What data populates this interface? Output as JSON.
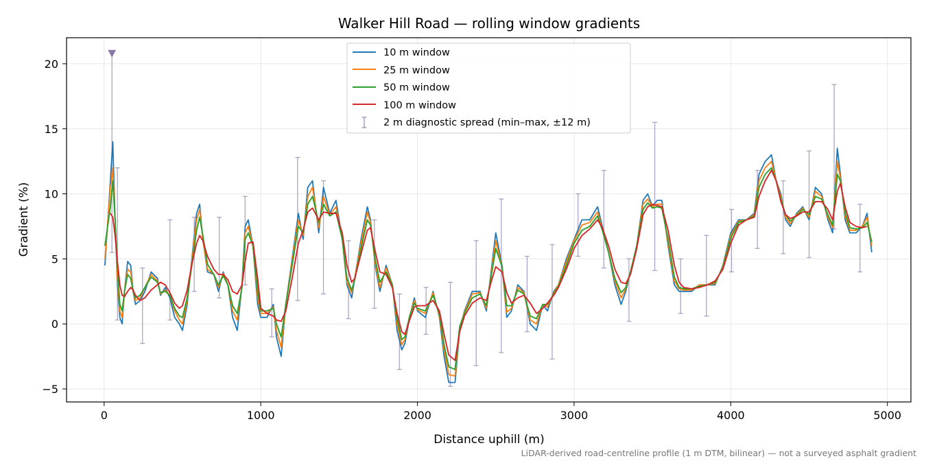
{
  "chart_data": {
    "type": "line",
    "title": "Walker Hill Road — rolling window gradients",
    "xlabel": "Distance uphill (m)",
    "ylabel": "Gradient (%)",
    "footnote": "LiDAR-derived road-centreline profile (1 m DTM, bilinear) — not a surveyed asphalt gradient",
    "xlim": [
      -240,
      5150
    ],
    "ylim": [
      -6,
      22
    ],
    "xticks": [
      0,
      1000,
      2000,
      3000,
      4000,
      5000
    ],
    "yticks": [
      -5,
      0,
      5,
      10,
      15,
      20
    ],
    "yticks_labels": [
      "−5",
      "0",
      "5",
      "10",
      "15",
      "20"
    ],
    "grid": true,
    "legend_position": "top-center",
    "colors": {
      "w10": "#1f77b4",
      "w25": "#ff7f0e",
      "w50": "#2ca02c",
      "w100": "#d62728",
      "spread": "#9a8fb5",
      "marker": "#8a79a8"
    },
    "x": [
      5,
      40,
      55,
      70,
      85,
      100,
      115,
      130,
      150,
      170,
      185,
      200,
      230,
      260,
      300,
      340,
      360,
      390,
      420,
      450,
      480,
      500,
      530,
      560,
      590,
      610,
      630,
      660,
      700,
      730,
      760,
      790,
      820,
      850,
      880,
      900,
      920,
      950,
      980,
      1000,
      1040,
      1080,
      1100,
      1130,
      1160,
      1200,
      1240,
      1270,
      1300,
      1330,
      1370,
      1400,
      1440,
      1480,
      1520,
      1550,
      1580,
      1600,
      1640,
      1680,
      1700,
      1730,
      1760,
      1800,
      1840,
      1870,
      1900,
      1920,
      1950,
      1980,
      2000,
      2050,
      2100,
      2140,
      2170,
      2200,
      2240,
      2270,
      2300,
      2350,
      2400,
      2440,
      2470,
      2500,
      2540,
      2570,
      2600,
      2640,
      2680,
      2720,
      2760,
      2800,
      2830,
      2870,
      2900,
      2950,
      3000,
      3050,
      3100,
      3150,
      3180,
      3220,
      3260,
      3300,
      3330,
      3360,
      3400,
      3440,
      3470,
      3500,
      3530,
      3560,
      3600,
      3640,
      3670,
      3700,
      3750,
      3800,
      3850,
      3900,
      3950,
      4000,
      4050,
      4100,
      4150,
      4180,
      4220,
      4260,
      4290,
      4320,
      4350,
      4380,
      4420,
      4460,
      4500,
      4540,
      4580,
      4620,
      4650,
      4680,
      4700,
      4730,
      4760,
      4800,
      4840,
      4870,
      4900
    ],
    "series": [
      {
        "name": "10 m window",
        "values": [
          4.5,
          11.0,
          14.0,
          8.0,
          3.0,
          0.5,
          0.0,
          2.5,
          4.8,
          4.5,
          2.5,
          1.5,
          1.8,
          2.5,
          4.0,
          3.5,
          2.2,
          2.8,
          2.0,
          0.5,
          0.0,
          -0.5,
          1.5,
          5.0,
          8.5,
          9.2,
          6.5,
          4.0,
          3.8,
          2.5,
          4.0,
          3.0,
          0.5,
          -0.5,
          3.0,
          7.5,
          8.0,
          6.0,
          1.5,
          0.5,
          0.5,
          1.5,
          -1.0,
          -2.5,
          1.5,
          5.0,
          8.5,
          6.5,
          10.5,
          11.0,
          7.0,
          10.5,
          8.5,
          9.5,
          6.5,
          3.0,
          2.0,
          3.5,
          6.5,
          9.0,
          8.0,
          4.5,
          2.5,
          4.5,
          3.0,
          -0.5,
          -2.0,
          -1.5,
          0.5,
          2.0,
          1.0,
          0.5,
          2.5,
          0.5,
          -2.5,
          -4.5,
          -4.5,
          -0.5,
          1.0,
          2.5,
          2.5,
          1.0,
          4.0,
          7.0,
          4.5,
          0.5,
          1.0,
          3.0,
          2.5,
          0.0,
          -0.5,
          1.5,
          1.0,
          2.5,
          3.0,
          5.0,
          6.5,
          8.0,
          8.0,
          9.0,
          7.5,
          5.5,
          3.0,
          1.5,
          2.5,
          4.0,
          6.0,
          9.5,
          10.0,
          9.0,
          9.5,
          9.5,
          6.0,
          3.0,
          2.5,
          2.5,
          2.5,
          3.0,
          3.0,
          3.0,
          4.5,
          7.0,
          8.0,
          8.0,
          8.5,
          11.5,
          12.5,
          13.0,
          11.0,
          10.0,
          8.0,
          7.5,
          8.5,
          9.0,
          8.0,
          10.5,
          10.0,
          8.0,
          7.0,
          13.5,
          11.5,
          8.0,
          7.0,
          7.0,
          7.5,
          8.5,
          5.5
        ]
      },
      {
        "name": "25 m window",
        "values": [
          5.0,
          10.5,
          12.0,
          8.0,
          3.5,
          1.0,
          0.5,
          2.5,
          4.2,
          4.0,
          2.5,
          1.8,
          2.0,
          2.8,
          3.8,
          3.3,
          2.3,
          2.6,
          2.2,
          1.0,
          0.3,
          0.0,
          1.8,
          4.8,
          8.0,
          8.8,
          6.5,
          4.2,
          3.8,
          2.8,
          3.9,
          3.0,
          1.0,
          0.3,
          3.0,
          7.0,
          7.5,
          6.0,
          2.0,
          0.8,
          0.8,
          1.3,
          -0.5,
          -1.8,
          1.5,
          4.8,
          8.0,
          6.8,
          9.8,
          10.5,
          7.4,
          9.8,
          8.4,
          9.0,
          6.5,
          3.2,
          2.4,
          3.5,
          6.2,
          8.6,
          7.8,
          4.7,
          2.8,
          4.3,
          3.0,
          0.0,
          -1.6,
          -1.2,
          0.6,
          1.8,
          1.1,
          0.8,
          2.4,
          0.6,
          -2.0,
          -3.9,
          -4.0,
          -0.3,
          0.9,
          2.3,
          2.4,
          1.2,
          3.8,
          6.4,
          4.4,
          0.9,
          1.2,
          2.8,
          2.4,
          0.3,
          0.0,
          1.5,
          1.3,
          2.4,
          3.0,
          4.8,
          6.4,
          7.6,
          7.8,
          8.6,
          7.3,
          5.5,
          3.3,
          2.0,
          2.7,
          4.0,
          6.0,
          9.2,
          9.6,
          9.0,
          9.2,
          9.2,
          6.2,
          3.3,
          2.7,
          2.6,
          2.6,
          3.0,
          3.0,
          3.1,
          4.4,
          6.8,
          7.9,
          8.0,
          8.4,
          11.0,
          12.0,
          12.5,
          11.0,
          9.8,
          8.2,
          7.7,
          8.4,
          8.9,
          8.2,
          10.2,
          9.8,
          8.2,
          7.4,
          12.5,
          11.2,
          8.3,
          7.2,
          7.2,
          7.5,
          8.2,
          6.0
        ]
      },
      {
        "name": "50 m window",
        "values": [
          6.0,
          9.0,
          11.0,
          8.0,
          4.5,
          1.5,
          1.0,
          2.5,
          3.8,
          3.5,
          2.5,
          2.0,
          2.2,
          2.8,
          3.6,
          3.2,
          2.4,
          2.5,
          2.2,
          1.2,
          0.6,
          0.5,
          2.0,
          4.5,
          7.2,
          8.2,
          6.8,
          4.6,
          3.8,
          3.0,
          3.7,
          3.0,
          1.4,
          0.8,
          2.8,
          6.5,
          7.0,
          6.0,
          2.5,
          1.0,
          1.0,
          1.2,
          0.0,
          -1.0,
          1.5,
          4.5,
          7.5,
          7.0,
          9.2,
          9.8,
          7.8,
          9.2,
          8.3,
          8.6,
          6.5,
          3.5,
          2.6,
          3.4,
          5.8,
          8.0,
          7.6,
          5.0,
          3.2,
          4.0,
          3.0,
          0.4,
          -1.2,
          -1.0,
          0.6,
          1.6,
          1.2,
          1.0,
          2.2,
          0.8,
          -1.6,
          -3.3,
          -3.5,
          -0.2,
          0.8,
          2.0,
          2.3,
          1.4,
          3.6,
          5.8,
          4.4,
          1.4,
          1.4,
          2.6,
          2.3,
          0.6,
          0.4,
          1.5,
          1.5,
          2.3,
          2.9,
          4.5,
          6.2,
          7.2,
          7.5,
          8.3,
          7.2,
          5.5,
          3.5,
          2.4,
          2.8,
          4.0,
          6.0,
          8.8,
          9.3,
          8.9,
          9.0,
          8.9,
          6.5,
          3.6,
          2.8,
          2.7,
          2.7,
          2.9,
          3.0,
          3.2,
          4.3,
          6.6,
          7.8,
          8.0,
          8.3,
          10.5,
          11.5,
          12.0,
          11.0,
          9.6,
          8.4,
          7.9,
          8.3,
          8.8,
          8.4,
          9.8,
          9.6,
          8.4,
          7.6,
          11.5,
          11.0,
          8.6,
          7.4,
          7.3,
          7.4,
          7.8,
          6.3
        ]
      },
      {
        "name": "100 m window",
        "values": [
          null,
          8.5,
          8.2,
          6.8,
          4.8,
          3.0,
          2.2,
          2.1,
          2.5,
          2.8,
          2.6,
          2.2,
          1.8,
          2.0,
          2.6,
          3.0,
          3.2,
          3.0,
          2.4,
          1.6,
          1.2,
          1.4,
          2.6,
          4.6,
          6.2,
          6.8,
          6.4,
          5.2,
          4.2,
          3.8,
          3.8,
          3.4,
          2.5,
          2.3,
          3.0,
          4.8,
          6.2,
          6.3,
          3.5,
          1.2,
          0.8,
          0.6,
          0.3,
          0.2,
          1.0,
          3.5,
          6.2,
          7.2,
          8.6,
          8.9,
          8.0,
          8.6,
          8.5,
          8.5,
          7.0,
          4.5,
          3.2,
          3.5,
          5.4,
          7.2,
          7.4,
          5.6,
          4.0,
          3.8,
          2.8,
          0.8,
          -0.6,
          -0.8,
          0.3,
          1.3,
          1.4,
          1.4,
          1.8,
          1.0,
          -0.8,
          -2.4,
          -2.8,
          -0.6,
          0.6,
          1.6,
          2.0,
          1.8,
          3.2,
          4.4,
          4.0,
          2.4,
          1.6,
          2.0,
          2.2,
          1.6,
          0.8,
          1.2,
          1.6,
          2.2,
          2.8,
          4.2,
          5.8,
          6.8,
          7.3,
          8.0,
          7.4,
          6.0,
          4.2,
          3.2,
          3.1,
          3.8,
          5.8,
          8.4,
          9.0,
          9.2,
          9.1,
          9.0,
          7.2,
          4.5,
          3.2,
          2.8,
          2.7,
          2.8,
          3.0,
          3.3,
          4.2,
          6.2,
          7.6,
          8.0,
          8.2,
          9.8,
          11.0,
          11.8,
          11.0,
          9.4,
          8.4,
          8.1,
          8.3,
          8.6,
          8.6,
          9.4,
          9.4,
          8.8,
          8.0,
          10.2,
          10.8,
          9.0,
          7.8,
          7.5,
          7.4,
          7.5,
          null
        ]
      }
    ],
    "spread_label": "2 m diagnostic spread (min–max, ±12 m)",
    "spread": [
      {
        "x": 50,
        "lo": 5.5,
        "hi": 20.8,
        "clipped": true
      },
      {
        "x": 85,
        "lo": 0.3,
        "hi": 12.0
      },
      {
        "x": 245,
        "lo": -1.5,
        "hi": 4.3
      },
      {
        "x": 420,
        "lo": 0.3,
        "hi": 8.0
      },
      {
        "x": 575,
        "lo": 2.5,
        "hi": 8.2
      },
      {
        "x": 735,
        "lo": 2.0,
        "hi": 8.2
      },
      {
        "x": 900,
        "lo": 3.0,
        "hi": 9.8
      },
      {
        "x": 1070,
        "lo": -1.0,
        "hi": 2.7
      },
      {
        "x": 1235,
        "lo": 1.8,
        "hi": 12.8
      },
      {
        "x": 1400,
        "lo": 2.3,
        "hi": 11.0
      },
      {
        "x": 1560,
        "lo": 0.4,
        "hi": 6.4
      },
      {
        "x": 1725,
        "lo": 1.2,
        "hi": 8.0
      },
      {
        "x": 1885,
        "lo": -3.5,
        "hi": 2.3
      },
      {
        "x": 2055,
        "lo": -0.8,
        "hi": 2.8
      },
      {
        "x": 2210,
        "lo": -4.8,
        "hi": 3.2
      },
      {
        "x": 2375,
        "lo": -3.2,
        "hi": 6.4
      },
      {
        "x": 2535,
        "lo": -2.2,
        "hi": 9.6
      },
      {
        "x": 2700,
        "lo": -0.6,
        "hi": 5.2
      },
      {
        "x": 2860,
        "lo": -2.7,
        "hi": 6.1
      },
      {
        "x": 3025,
        "lo": 5.2,
        "hi": 10.0
      },
      {
        "x": 3190,
        "lo": 4.3,
        "hi": 11.8
      },
      {
        "x": 3350,
        "lo": 0.2,
        "hi": 5.0
      },
      {
        "x": 3515,
        "lo": 4.1,
        "hi": 15.5
      },
      {
        "x": 3680,
        "lo": 0.8,
        "hi": 5.0
      },
      {
        "x": 3845,
        "lo": 0.6,
        "hi": 6.8
      },
      {
        "x": 4005,
        "lo": 4.0,
        "hi": 8.8
      },
      {
        "x": 4170,
        "lo": 5.8,
        "hi": 11.8
      },
      {
        "x": 4335,
        "lo": 5.4,
        "hi": 11.0
      },
      {
        "x": 4500,
        "lo": 5.1,
        "hi": 13.3
      },
      {
        "x": 4660,
        "lo": 7.3,
        "hi": 18.4
      },
      {
        "x": 4825,
        "lo": 4.0,
        "hi": 9.2
      }
    ]
  }
}
